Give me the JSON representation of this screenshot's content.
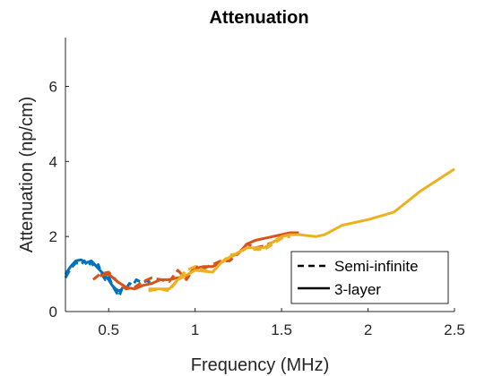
{
  "chart_data": {
    "type": "line",
    "title": "Attenuation",
    "xlabel": "Frequency (MHz)",
    "ylabel": "Attenuation (np/cm)",
    "xlim": [
      0.25,
      2.5
    ],
    "ylim": [
      0,
      7.3
    ],
    "xticks": [
      0.5,
      1,
      1.5,
      2,
      2.5
    ],
    "xtick_labels": [
      "0.5",
      "1",
      "1.5",
      "2",
      "2.5"
    ],
    "yticks": [
      0,
      2,
      4,
      6
    ],
    "ytick_labels": [
      "0",
      "2",
      "4",
      "6"
    ],
    "grid": false,
    "legend": {
      "position": "bottom-right",
      "entries": [
        {
          "label": "Semi-infinite",
          "style": "dashed"
        },
        {
          "label": "3-layer",
          "style": "solid"
        }
      ]
    },
    "series": [
      {
        "color": "#0072BD",
        "style": "dashed",
        "x": [
          0.25,
          0.28,
          0.31,
          0.34,
          0.36,
          0.38,
          0.4,
          0.42,
          0.44,
          0.46,
          0.48,
          0.5,
          0.52,
          0.54,
          0.56,
          0.58,
          0.6,
          0.62,
          0.64,
          0.66,
          0.68,
          0.7,
          0.72,
          0.74
        ],
        "y": [
          0.9,
          1.15,
          1.3,
          1.25,
          1.35,
          1.2,
          1.32,
          1.15,
          1.25,
          1.0,
          0.85,
          0.95,
          0.7,
          0.55,
          0.4,
          0.65,
          0.6,
          0.75,
          0.7,
          0.85,
          0.8,
          0.78,
          0.82,
          0.78
        ]
      },
      {
        "color": "#0072BD",
        "style": "solid",
        "x": [
          0.25,
          0.28,
          0.31,
          0.34,
          0.37,
          0.4,
          0.43,
          0.46,
          0.48,
          0.5,
          0.52,
          0.54,
          0.56,
          0.58
        ],
        "y": [
          1.0,
          1.2,
          1.35,
          1.38,
          1.3,
          1.35,
          1.2,
          1.05,
          0.95,
          0.85,
          0.7,
          0.6,
          0.55,
          0.6
        ]
      },
      {
        "color": "#D95319",
        "style": "dashed",
        "x": [
          0.41,
          0.45,
          0.5,
          0.55,
          0.6,
          0.65,
          0.7,
          0.75,
          0.8,
          0.85,
          0.9,
          0.95,
          1.0,
          1.05,
          1.1,
          1.15,
          1.2,
          1.25,
          1.3,
          1.35,
          1.4,
          1.45,
          1.5,
          1.55,
          1.6
        ],
        "y": [
          0.85,
          1.0,
          1.05,
          0.8,
          0.6,
          0.65,
          0.8,
          0.9,
          0.85,
          0.8,
          1.1,
          0.85,
          1.2,
          1.15,
          1.25,
          1.35,
          1.35,
          1.55,
          1.8,
          1.7,
          1.75,
          1.85,
          2.0,
          2.05,
          2.1
        ]
      },
      {
        "color": "#D95319",
        "style": "solid",
        "x": [
          0.45,
          0.5,
          0.55,
          0.6,
          0.65,
          0.7,
          0.75,
          0.8,
          0.85,
          0.9,
          0.95,
          1.0,
          1.05,
          1.1,
          1.15,
          1.2,
          1.25,
          1.3,
          1.35,
          1.4,
          1.45,
          1.5,
          1.55,
          1.6
        ],
        "y": [
          0.95,
          1.0,
          0.8,
          0.65,
          0.6,
          0.7,
          0.75,
          0.85,
          0.85,
          0.9,
          0.95,
          1.15,
          1.2,
          1.2,
          1.3,
          1.45,
          1.55,
          1.8,
          1.9,
          1.95,
          2.0,
          2.05,
          2.1,
          2.1
        ]
      },
      {
        "color": "#EDB120",
        "style": "dashed",
        "x": [
          0.73,
          0.8,
          0.85,
          0.9,
          0.95,
          1.0,
          1.05,
          1.1,
          1.15,
          1.2,
          1.25,
          1.3,
          1.35,
          1.4,
          1.45,
          1.5,
          1.55
        ],
        "y": [
          0.55,
          0.6,
          0.55,
          0.85,
          1.1,
          1.2,
          1.1,
          1.05,
          1.3,
          1.5,
          1.55,
          1.7,
          1.65,
          1.65,
          1.8,
          1.95,
          2.0
        ]
      },
      {
        "color": "#EDB120",
        "style": "solid",
        "x": [
          0.73,
          0.8,
          0.85,
          0.9,
          1.0,
          1.1,
          1.15,
          1.2,
          1.3,
          1.4,
          1.45,
          1.5,
          1.55,
          1.6,
          1.7,
          1.75,
          1.85,
          2.0,
          2.15,
          2.3,
          2.5
        ],
        "y": [
          0.6,
          0.6,
          0.6,
          0.85,
          1.1,
          1.05,
          1.3,
          1.45,
          1.7,
          1.7,
          1.85,
          2.0,
          2.05,
          2.05,
          2.0,
          2.05,
          2.3,
          2.45,
          2.65,
          3.2,
          3.8
        ]
      }
    ]
  }
}
